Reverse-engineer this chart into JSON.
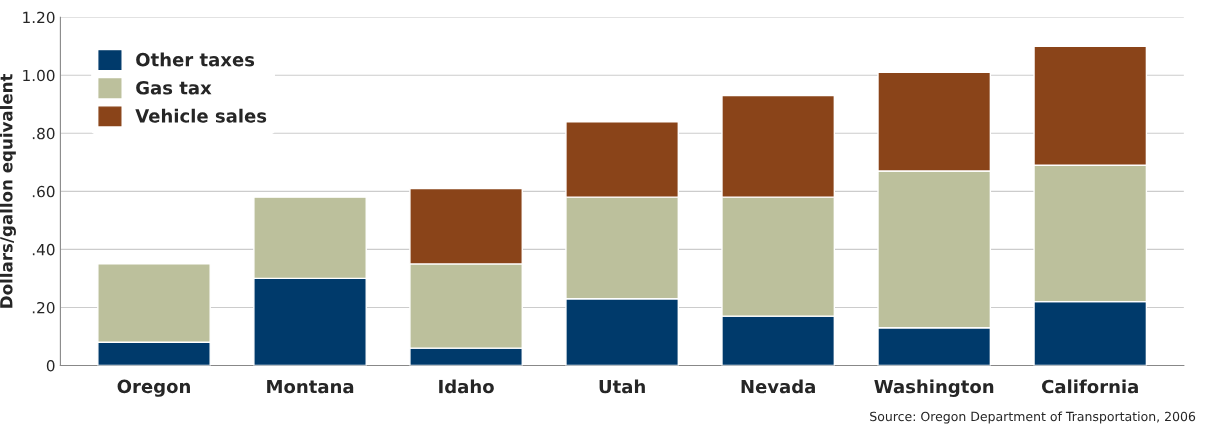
{
  "chart_data": {
    "type": "bar",
    "stacked": true,
    "ylabel": "Dollars/gallon equivalent",
    "categories": [
      "Oregon",
      "Montana",
      "Idaho",
      "Utah",
      "Nevada",
      "Washington",
      "California"
    ],
    "series": [
      {
        "name": "Other taxes",
        "color": "#003a6b",
        "values": [
          0.08,
          0.3,
          0.06,
          0.23,
          0.17,
          0.13,
          0.22
        ]
      },
      {
        "name": "Gas tax",
        "color": "#bcc09c",
        "values": [
          0.27,
          0.28,
          0.29,
          0.35,
          0.41,
          0.54,
          0.47
        ]
      },
      {
        "name": "Vehicle sales",
        "color": "#8a4419",
        "values": [
          null,
          null,
          0.26,
          0.26,
          0.35,
          0.34,
          0.41
        ]
      }
    ],
    "ylim": [
      0,
      1.2
    ],
    "yticks": [
      0,
      {
        "value": 0.2,
        "label": ".20"
      },
      {
        "value": 0.4,
        "label": ".40"
      },
      {
        "value": 0.6,
        "label": ".60"
      },
      {
        "value": 0.8,
        "label": ".80"
      },
      {
        "value": 1.0,
        "label": "1.00"
      },
      {
        "value": 1.2,
        "label": "1.20"
      }
    ],
    "grid": "y",
    "legend": "top left",
    "annotations": [
      "Source: Oregon Department of Transportation, 2006"
    ]
  }
}
